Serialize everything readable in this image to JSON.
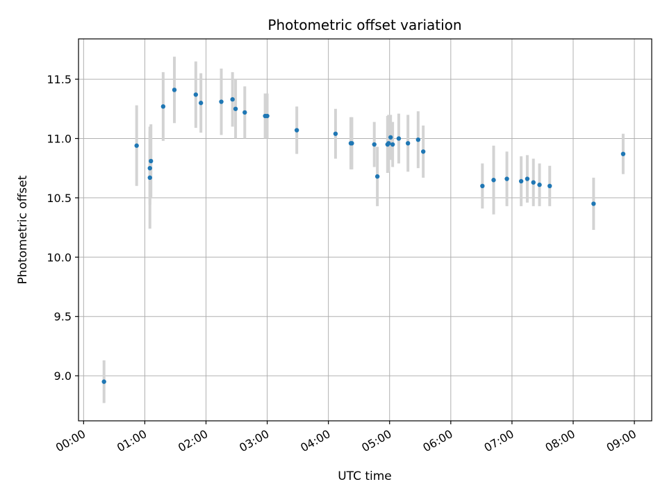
{
  "chart_data": {
    "type": "scatter",
    "title": "Photometric offset variation",
    "xlabel": "UTC time",
    "ylabel": "Photometric offset",
    "grid": true,
    "xlim": [
      "-00:05",
      "09:17"
    ],
    "ylim": [
      8.62,
      11.84
    ],
    "x_ticks": [
      "00:00",
      "01:00",
      "02:00",
      "03:00",
      "04:00",
      "05:00",
      "06:00",
      "07:00",
      "08:00",
      "09:00"
    ],
    "y_ticks": [
      "9.0",
      "9.5",
      "10.0",
      "10.5",
      "11.0",
      "11.5"
    ],
    "marker_color": "#1f77b4",
    "errorbar_color": "#d3d3d3",
    "series": [
      {
        "points": [
          {
            "x": "00:20",
            "y": 8.95,
            "err": 0.18
          },
          {
            "x": "00:52",
            "y": 10.94,
            "err": 0.34
          },
          {
            "x": "01:05",
            "y": 10.67,
            "err": 0.43
          },
          {
            "x": "01:05",
            "y": 10.75,
            "err": 0.31
          },
          {
            "x": "01:06",
            "y": 10.81,
            "err": 0.31
          },
          {
            "x": "01:18",
            "y": 11.27,
            "err": 0.29
          },
          {
            "x": "01:29",
            "y": 11.41,
            "err": 0.28
          },
          {
            "x": "01:50",
            "y": 11.37,
            "err": 0.28
          },
          {
            "x": "01:55",
            "y": 11.3,
            "err": 0.25
          },
          {
            "x": "02:15",
            "y": 11.31,
            "err": 0.28
          },
          {
            "x": "02:26",
            "y": 11.33,
            "err": 0.23
          },
          {
            "x": "02:29",
            "y": 11.25,
            "err": 0.25
          },
          {
            "x": "02:38",
            "y": 11.22,
            "err": 0.22
          },
          {
            "x": "02:58",
            "y": 11.19,
            "err": 0.19
          },
          {
            "x": "03:00",
            "y": 11.19,
            "err": 0.19
          },
          {
            "x": "03:29",
            "y": 11.07,
            "err": 0.2
          },
          {
            "x": "04:07",
            "y": 11.04,
            "err": 0.21
          },
          {
            "x": "04:22",
            "y": 10.96,
            "err": 0.22
          },
          {
            "x": "04:23",
            "y": 10.96,
            "err": 0.22
          },
          {
            "x": "04:45",
            "y": 10.95,
            "err": 0.19
          },
          {
            "x": "04:48",
            "y": 10.68,
            "err": 0.25
          },
          {
            "x": "04:58",
            "y": 10.95,
            "err": 0.24
          },
          {
            "x": "04:59",
            "y": 10.96,
            "err": 0.24
          },
          {
            "x": "05:01",
            "y": 11.01,
            "err": 0.19
          },
          {
            "x": "05:03",
            "y": 10.95,
            "err": 0.19
          },
          {
            "x": "05:09",
            "y": 11.0,
            "err": 0.21
          },
          {
            "x": "05:18",
            "y": 10.96,
            "err": 0.24
          },
          {
            "x": "05:28",
            "y": 10.99,
            "err": 0.24
          },
          {
            "x": "05:33",
            "y": 10.89,
            "err": 0.22
          },
          {
            "x": "06:31",
            "y": 10.6,
            "err": 0.19
          },
          {
            "x": "06:42",
            "y": 10.65,
            "err": 0.29
          },
          {
            "x": "06:55",
            "y": 10.66,
            "err": 0.23
          },
          {
            "x": "07:09",
            "y": 10.64,
            "err": 0.21
          },
          {
            "x": "07:15",
            "y": 10.66,
            "err": 0.2
          },
          {
            "x": "07:21",
            "y": 10.63,
            "err": 0.2
          },
          {
            "x": "07:27",
            "y": 10.61,
            "err": 0.18
          },
          {
            "x": "07:37",
            "y": 10.6,
            "err": 0.17
          },
          {
            "x": "08:20",
            "y": 10.45,
            "err": 0.22
          },
          {
            "x": "08:49",
            "y": 10.87,
            "err": 0.17
          }
        ]
      }
    ]
  }
}
